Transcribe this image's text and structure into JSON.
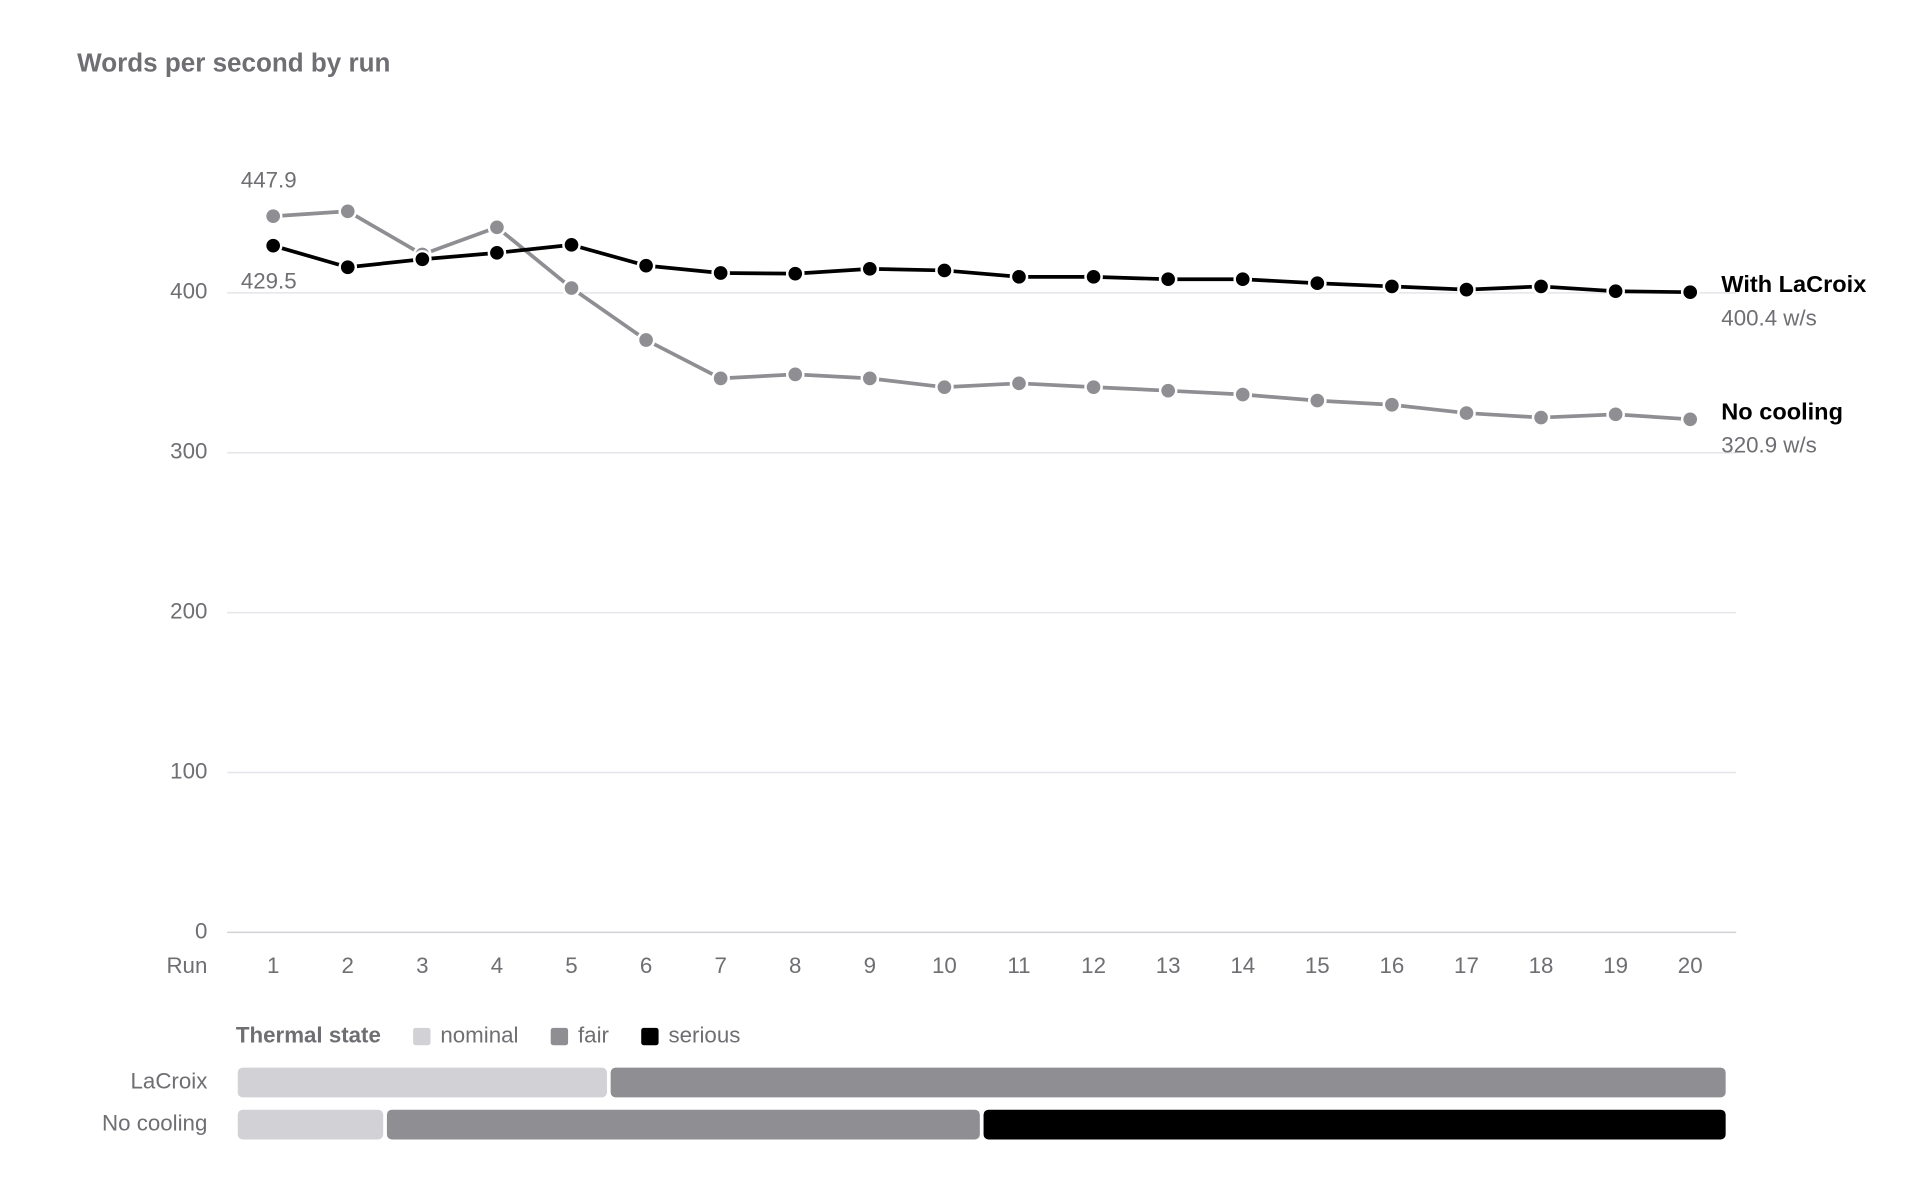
{
  "chart_data": {
    "type": "line",
    "title": "Words per second by run",
    "x_label": "Run",
    "categories": [
      1,
      2,
      3,
      4,
      5,
      6,
      7,
      8,
      9,
      10,
      11,
      12,
      13,
      14,
      15,
      16,
      17,
      18,
      19,
      20
    ],
    "ylim": [
      0,
      480
    ],
    "yticks": [
      0,
      100,
      200,
      300,
      400
    ],
    "grid": true,
    "series": [
      {
        "name": "With LaCroix",
        "color": "#000000",
        "values": [
          429.5,
          416,
          421,
          425,
          430,
          417,
          412.4,
          412,
          415,
          414,
          410,
          410,
          408.5,
          408.5,
          406,
          404,
          402,
          404,
          401,
          400.4
        ],
        "value_labels": [
          "429.5",
          null,
          null,
          null,
          null,
          null,
          null,
          null,
          null,
          null,
          null,
          null,
          null,
          null,
          null,
          null,
          null,
          null,
          null,
          "400.4 w/s"
        ]
      },
      {
        "name": "No cooling",
        "color": "#8e8e93",
        "values": [
          447.9,
          451,
          424,
          441,
          403,
          370.5,
          346.5,
          349,
          346.5,
          341,
          343.4,
          341,
          338.8,
          336.4,
          332.6,
          330,
          324.8,
          322,
          324,
          320.9
        ],
        "value_labels": [
          "447.9",
          null,
          null,
          null,
          null,
          null,
          null,
          null,
          null,
          null,
          null,
          null,
          null,
          null,
          null,
          null,
          null,
          null,
          null,
          "320.9 w/s"
        ]
      }
    ],
    "thermal": {
      "title": "Thermal state",
      "states": [
        {
          "name": "nominal",
          "color": "#d1d1d6"
        },
        {
          "name": "fair",
          "color": "#8e8e93"
        },
        {
          "name": "serious",
          "color": "#000000"
        }
      ],
      "rows": [
        {
          "name": "LaCroix",
          "segments": [
            {
              "state": "nominal",
              "from": 1,
              "to": 5
            },
            {
              "state": "fair",
              "from": 6,
              "to": 20
            }
          ]
        },
        {
          "name": "No cooling",
          "segments": [
            {
              "state": "nominal",
              "from": 1,
              "to": 2
            },
            {
              "state": "fair",
              "from": 3,
              "to": 10
            },
            {
              "state": "serious",
              "from": 11,
              "to": 20
            }
          ]
        }
      ]
    }
  }
}
